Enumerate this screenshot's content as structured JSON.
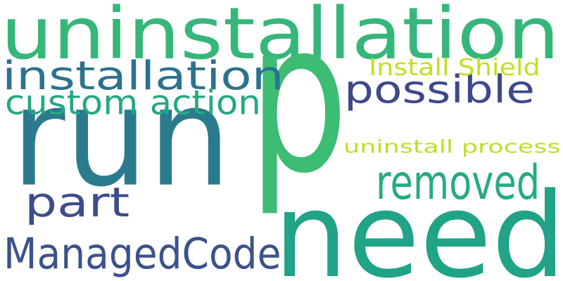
{
  "cloud": {
    "words": [
      {
        "text": "uninstallation",
        "color": "#35b779"
      },
      {
        "text": "p",
        "color": "#3dbc74"
      },
      {
        "text": "run",
        "color": "#2a7b8e"
      },
      {
        "text": "need",
        "color": "#20a386"
      },
      {
        "text": "installation",
        "color": "#2c728e"
      },
      {
        "text": "possible",
        "color": "#3f4889"
      },
      {
        "text": "custom action",
        "color": "#26a784"
      },
      {
        "text": "Install Shield",
        "color": "#c2df23"
      },
      {
        "text": "uninstall process",
        "color": "#bddf26"
      },
      {
        "text": "removed",
        "color": "#25ab82"
      },
      {
        "text": "part",
        "color": "#3e4c8a"
      },
      {
        "text": "ManagedCode",
        "color": "#3b528b"
      }
    ]
  }
}
